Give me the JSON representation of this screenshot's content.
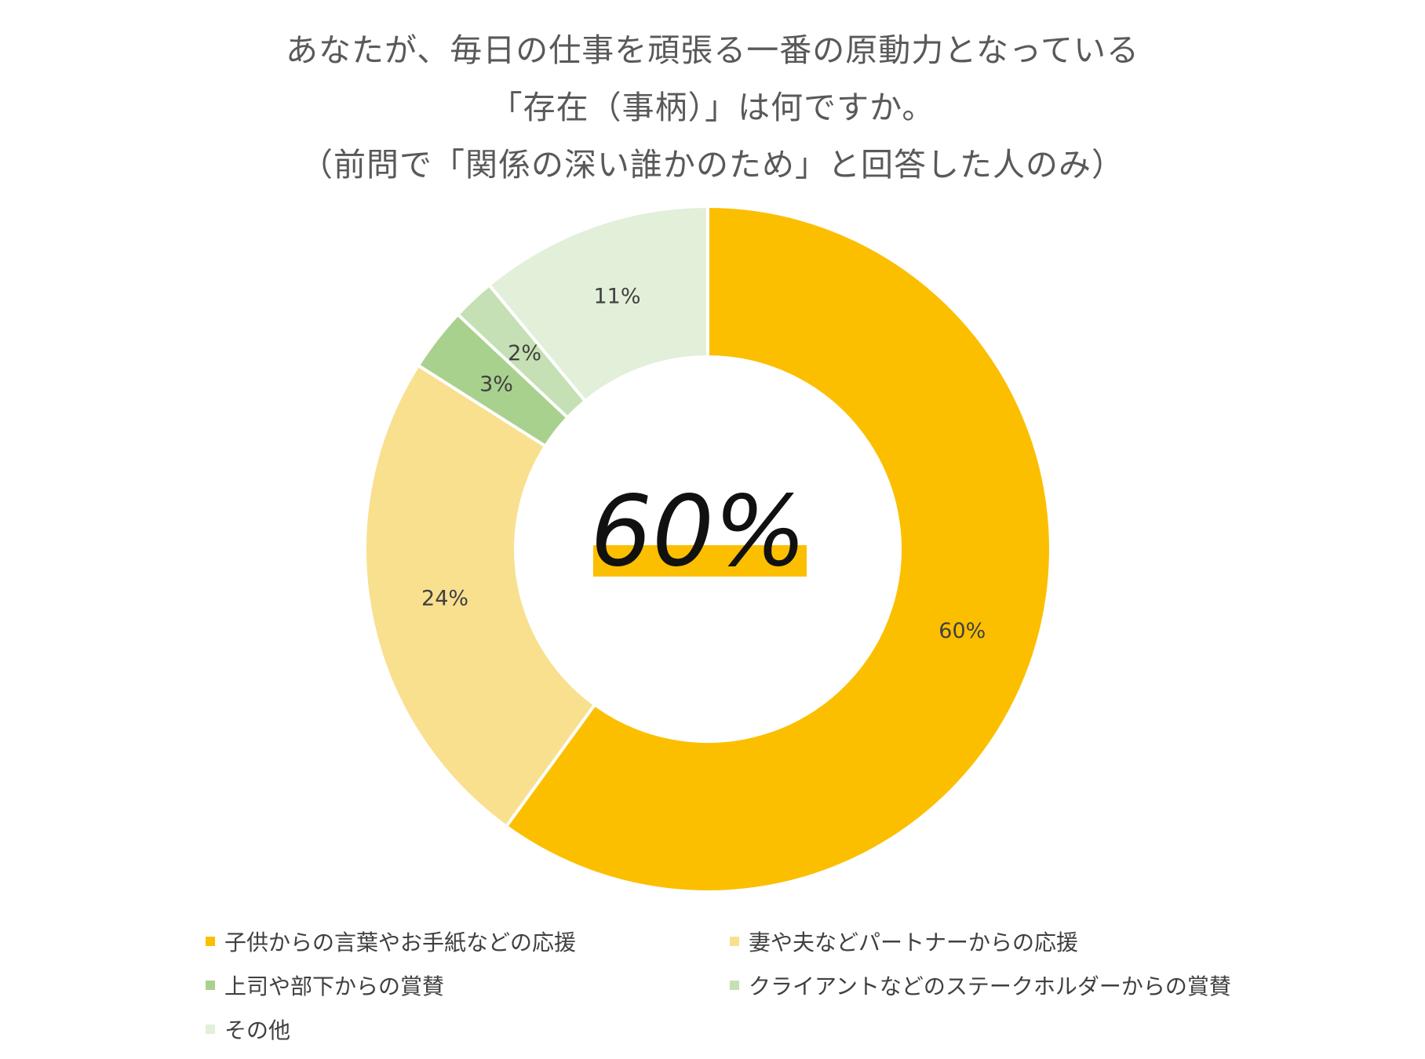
{
  "title": {
    "lines": [
      "あなたが、毎日の仕事を頑張る一番の原動力となっている",
      "「存在（事柄）」は何ですか。",
      "（前問で「関係の深い誰かのため」と回答した人のみ）"
    ]
  },
  "center_label": "60%",
  "colors": {
    "s1": "#fbbf00",
    "s2": "#f8e08f",
    "s3": "#a9d18e",
    "s4": "#c5e0b4",
    "s5": "#e2efd9",
    "highlight": "#fbbf00"
  },
  "chart_data": {
    "type": "pie",
    "donut": true,
    "title": "あなたが、毎日の仕事を頑張る一番の原動力となっている「存在（事柄）」は何ですか。（前問で「関係の深い誰かのため」と回答した人のみ）",
    "legend_position": "bottom",
    "series": [
      {
        "name": "子供からの言葉やお手紙などの応援",
        "value": 60,
        "label": "60%",
        "color": "#fbbf00"
      },
      {
        "name": "妻や夫などパートナーからの応援",
        "value": 24,
        "label": "24%",
        "color": "#f8e08f"
      },
      {
        "name": "上司や部下からの賞賛",
        "value": 3,
        "label": "3%",
        "color": "#a9d18e"
      },
      {
        "name": "クライアントなどのステークホルダーからの賞賛",
        "value": 2,
        "label": "2%",
        "color": "#c5e0b4"
      },
      {
        "name": "その他",
        "value": 11,
        "label": "11%",
        "color": "#e2efd9"
      }
    ]
  }
}
